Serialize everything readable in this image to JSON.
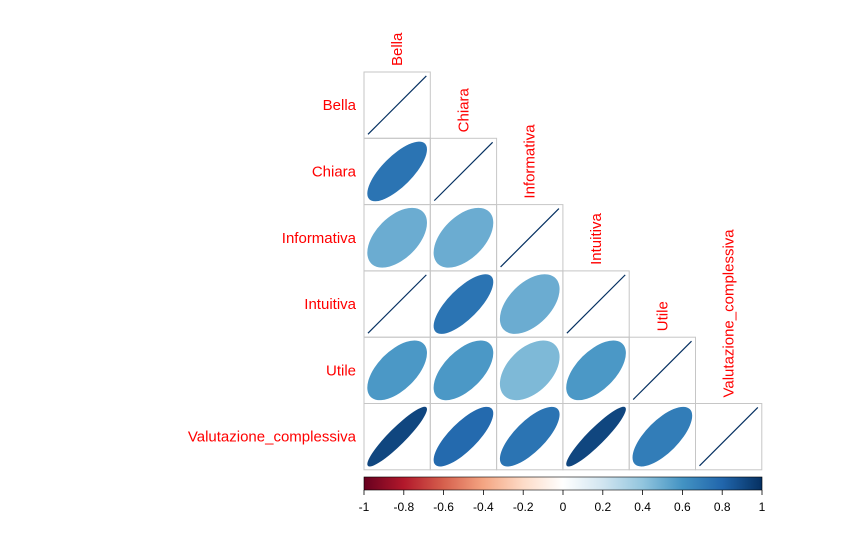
{
  "chart_data": {
    "type": "heatmap",
    "variables": [
      "Bella",
      "Chiara",
      "Informativa",
      "Intuitiva",
      "Utile",
      "Valutazione_complessiva"
    ],
    "matrix_shape": "lower-triangular",
    "method": "ellipse",
    "correlations": [
      [
        1.0,
        null,
        null,
        null,
        null,
        null
      ],
      [
        0.74,
        1.0,
        null,
        null,
        null,
        null
      ],
      [
        0.5,
        0.5,
        1.0,
        null,
        null,
        null
      ],
      [
        1.0,
        0.74,
        0.5,
        1.0,
        null,
        null
      ],
      [
        0.58,
        0.58,
        0.45,
        0.58,
        1.0,
        null
      ],
      [
        0.92,
        0.78,
        0.74,
        0.92,
        0.7,
        1.0
      ]
    ],
    "colorbar": {
      "ticks": [
        "-1",
        "-0.8",
        "-0.6",
        "-0.4",
        "-0.2",
        "0",
        "0.2",
        "0.4",
        "0.6",
        "0.8",
        "1"
      ],
      "range": [
        -1,
        1
      ]
    },
    "label_color": "#ff0000",
    "palette": [
      "#67001F",
      "#B2182B",
      "#D6604D",
      "#F4A582",
      "#FDDBC7",
      "#FFFFFF",
      "#D1E5F0",
      "#92C5DE",
      "#4393C3",
      "#2166AC",
      "#053061"
    ]
  }
}
